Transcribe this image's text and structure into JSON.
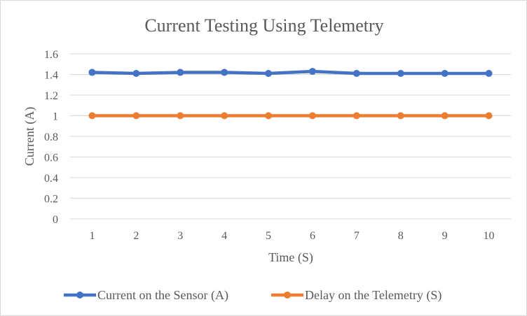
{
  "chart_data": {
    "type": "line",
    "title": "Current Testing Using Telemetry",
    "xlabel": "Time (S)",
    "ylabel": "Current (A)",
    "categories": [
      "1",
      "2",
      "3",
      "4",
      "5",
      "6",
      "7",
      "8",
      "9",
      "10"
    ],
    "ylim": [
      0,
      1.6
    ],
    "yticks": [
      0,
      0.2,
      0.4,
      0.6,
      0.8,
      1,
      1.2,
      1.4,
      1.6
    ],
    "ytick_labels": [
      "0",
      "0.2",
      "0.4",
      "0.6",
      "0.8",
      "1",
      "1.2",
      "1.4",
      "1.6"
    ],
    "grid": true,
    "legend_position": "bottom",
    "series": [
      {
        "name": "Current on the Sensor (A)",
        "color": "#4472c4",
        "values": [
          1.42,
          1.41,
          1.42,
          1.42,
          1.41,
          1.43,
          1.41,
          1.41,
          1.41,
          1.41
        ]
      },
      {
        "name": "Delay on the Telemetry (S)",
        "color": "#ed7d31",
        "values": [
          1,
          1,
          1,
          1,
          1,
          1,
          1,
          1,
          1,
          1
        ]
      }
    ]
  }
}
